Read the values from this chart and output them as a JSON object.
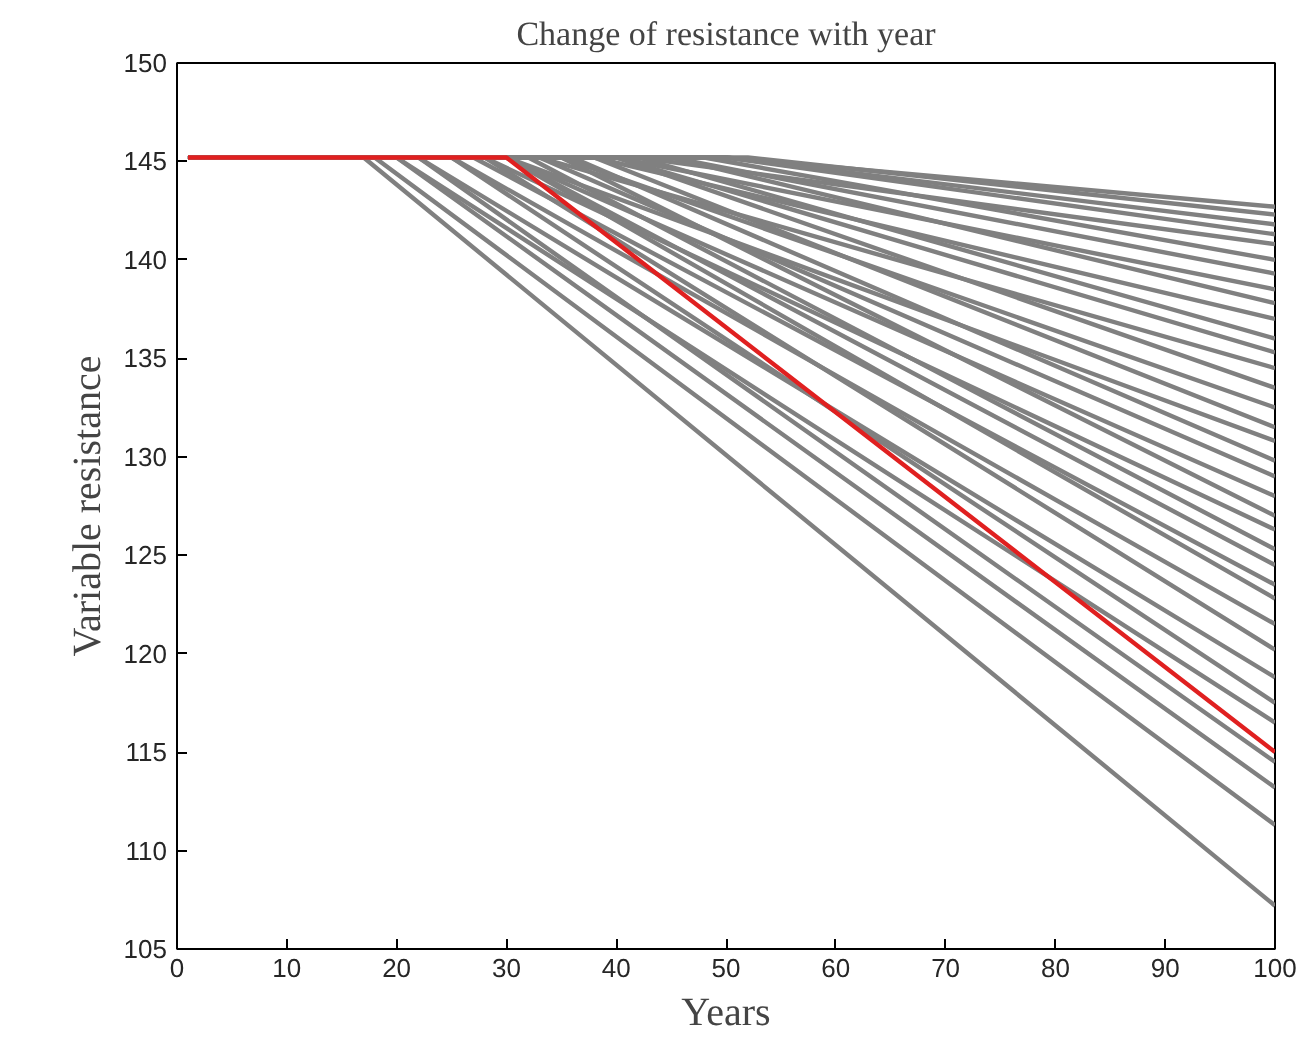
{
  "chart_data": {
    "type": "line",
    "title": "Change of resistance with year",
    "xlabel": "Years",
    "ylabel": "Variable resistance",
    "xlim": [
      0,
      100
    ],
    "ylim": [
      105,
      150
    ],
    "xticks": [
      0,
      10,
      20,
      30,
      40,
      50,
      60,
      70,
      80,
      90,
      100
    ],
    "yticks": [
      105,
      110,
      115,
      120,
      125,
      130,
      135,
      140,
      145,
      150
    ],
    "grid": false,
    "marker": "none",
    "line_style": "solid",
    "series": [
      {
        "color": "#808080",
        "x": [
          1,
          17,
          100
        ],
        "values": [
          145.2,
          145.2,
          107.2
        ]
      },
      {
        "color": "#808080",
        "x": [
          1,
          18,
          100
        ],
        "values": [
          145.2,
          145.2,
          111.3
        ]
      },
      {
        "color": "#808080",
        "x": [
          1,
          20,
          100
        ],
        "values": [
          145.2,
          145.2,
          113.2
        ]
      },
      {
        "color": "#808080",
        "x": [
          1,
          22,
          100
        ],
        "values": [
          145.2,
          145.2,
          114.5
        ]
      },
      {
        "color": "#808080",
        "x": [
          1,
          20,
          100
        ],
        "values": [
          145.2,
          145.2,
          116.5
        ]
      },
      {
        "color": "#808080",
        "x": [
          1,
          25,
          100
        ],
        "values": [
          145.2,
          145.2,
          117.5
        ]
      },
      {
        "color": "#808080",
        "x": [
          1,
          22,
          100
        ],
        "values": [
          145.2,
          145.2,
          118.8
        ]
      },
      {
        "color": "#808080",
        "x": [
          1,
          28,
          100
        ],
        "values": [
          145.2,
          145.2,
          120.2
        ]
      },
      {
        "color": "#808080",
        "x": [
          1,
          25,
          100
        ],
        "values": [
          145.2,
          145.2,
          121.5
        ]
      },
      {
        "color": "#808080",
        "x": [
          1,
          30,
          100
        ],
        "values": [
          145.2,
          145.2,
          122.8
        ]
      },
      {
        "color": "#808080",
        "x": [
          1,
          27,
          100
        ],
        "values": [
          145.2,
          145.2,
          123.5
        ]
      },
      {
        "color": "#808080",
        "x": [
          1,
          30,
          100
        ],
        "values": [
          145.2,
          145.2,
          124.5
        ]
      },
      {
        "color": "#808080",
        "x": [
          1,
          32,
          100
        ],
        "values": [
          145.2,
          145.2,
          125.3
        ]
      },
      {
        "color": "#808080",
        "x": [
          1,
          28,
          100
        ],
        "values": [
          145.2,
          145.2,
          126.3
        ]
      },
      {
        "color": "#808080",
        "x": [
          1,
          35,
          100
        ],
        "values": [
          145.2,
          145.2,
          127.0
        ]
      },
      {
        "color": "#808080",
        "x": [
          1,
          30,
          100
        ],
        "values": [
          145.2,
          145.2,
          128.0
        ]
      },
      {
        "color": "#808080",
        "x": [
          1,
          33,
          100
        ],
        "values": [
          145.2,
          145.2,
          129.0
        ]
      },
      {
        "color": "#808080",
        "x": [
          1,
          36,
          100
        ],
        "values": [
          145.2,
          145.2,
          129.8
        ]
      },
      {
        "color": "#808080",
        "x": [
          1,
          30,
          100
        ],
        "values": [
          145.2,
          145.2,
          130.8
        ]
      },
      {
        "color": "#808080",
        "x": [
          1,
          38,
          100
        ],
        "values": [
          145.2,
          145.2,
          131.5
        ]
      },
      {
        "color": "#808080",
        "x": [
          1,
          35,
          100
        ],
        "values": [
          145.2,
          145.2,
          132.5
        ]
      },
      {
        "color": "#808080",
        "x": [
          1,
          40,
          100
        ],
        "values": [
          145.2,
          145.2,
          133.5
        ]
      },
      {
        "color": "#808080",
        "x": [
          1,
          33,
          100
        ],
        "values": [
          145.2,
          145.2,
          134.5
        ]
      },
      {
        "color": "#808080",
        "x": [
          1,
          40,
          100
        ],
        "values": [
          145.2,
          145.2,
          135.3
        ]
      },
      {
        "color": "#808080",
        "x": [
          1,
          42,
          100
        ],
        "values": [
          145.2,
          145.2,
          136.0
        ]
      },
      {
        "color": "#808080",
        "x": [
          1,
          38,
          100
        ],
        "values": [
          145.2,
          145.2,
          137.0
        ]
      },
      {
        "color": "#808080",
        "x": [
          1,
          45,
          100
        ],
        "values": [
          145.2,
          145.2,
          137.8
        ]
      },
      {
        "color": "#808080",
        "x": [
          1,
          40,
          100
        ],
        "values": [
          145.2,
          145.2,
          138.5
        ]
      },
      {
        "color": "#808080",
        "x": [
          1,
          45,
          100
        ],
        "values": [
          145.2,
          145.2,
          139.3
        ]
      },
      {
        "color": "#808080",
        "x": [
          1,
          48,
          100
        ],
        "values": [
          145.2,
          145.2,
          140.0
        ]
      },
      {
        "color": "#808080",
        "x": [
          1,
          42,
          100
        ],
        "values": [
          145.2,
          145.2,
          140.8
        ]
      },
      {
        "color": "#808080",
        "x": [
          1,
          50,
          100
        ],
        "values": [
          145.2,
          145.2,
          141.3
        ]
      },
      {
        "color": "#808080",
        "x": [
          1,
          50,
          100
        ],
        "values": [
          145.2,
          145.2,
          141.8
        ]
      },
      {
        "color": "#808080",
        "x": [
          1,
          52,
          100
        ],
        "values": [
          145.2,
          145.2,
          142.3
        ]
      },
      {
        "color": "#808080",
        "x": [
          1,
          50,
          100
        ],
        "values": [
          145.2,
          145.2,
          142.7
        ]
      },
      {
        "color": "#e02020",
        "x": [
          1,
          30,
          100
        ],
        "values": [
          145.2,
          145.2,
          115.0
        ]
      }
    ]
  }
}
